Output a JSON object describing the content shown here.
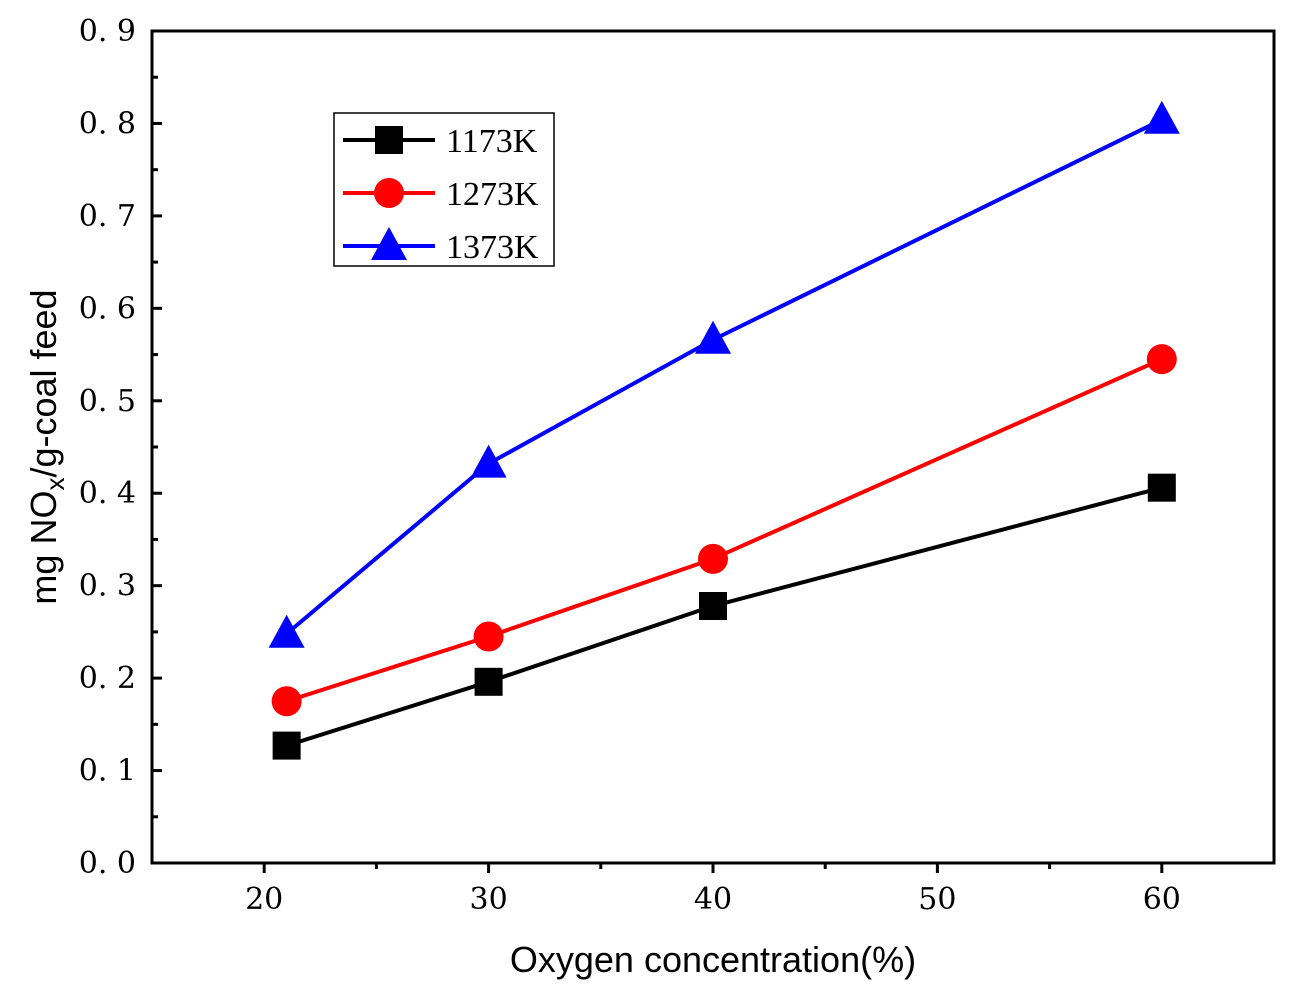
{
  "chart_data": {
    "type": "line",
    "title": "",
    "xlabel": "Oxygen concentration(%)",
    "ylabel": {
      "prefix": "mg NO",
      "subscript": "x",
      "suffix": "/g-coal feed"
    },
    "xlim": [
      15,
      65
    ],
    "ylim": [
      0,
      0.9
    ],
    "xticks": [
      20,
      30,
      40,
      50,
      60
    ],
    "xtick_labels": [
      "20",
      "30",
      "40",
      "50",
      "60"
    ],
    "yticks": [
      0,
      0.1,
      0.2,
      0.3,
      0.4,
      0.5,
      0.6,
      0.7,
      0.8,
      0.9
    ],
    "ytick_labels": [
      "0. 0",
      "0. 1",
      "0. 2",
      "0. 3",
      "0. 4",
      "0. 5",
      "0. 6",
      "0. 7",
      "0. 8",
      "0. 9"
    ],
    "grid": false,
    "legend_position": "top-left",
    "x": [
      21,
      30,
      40,
      60
    ],
    "series": [
      {
        "name": "1173K",
        "color": "#000000",
        "marker": "square",
        "values": [
          0.127,
          0.196,
          0.278,
          0.406
        ]
      },
      {
        "name": "1273K",
        "color": "#ff0000",
        "marker": "circle",
        "values": [
          0.175,
          0.245,
          0.329,
          0.545
        ]
      },
      {
        "name": "1373K",
        "color": "#0000ff",
        "marker": "triangle",
        "values": [
          0.248,
          0.432,
          0.566,
          0.804
        ]
      }
    ]
  }
}
